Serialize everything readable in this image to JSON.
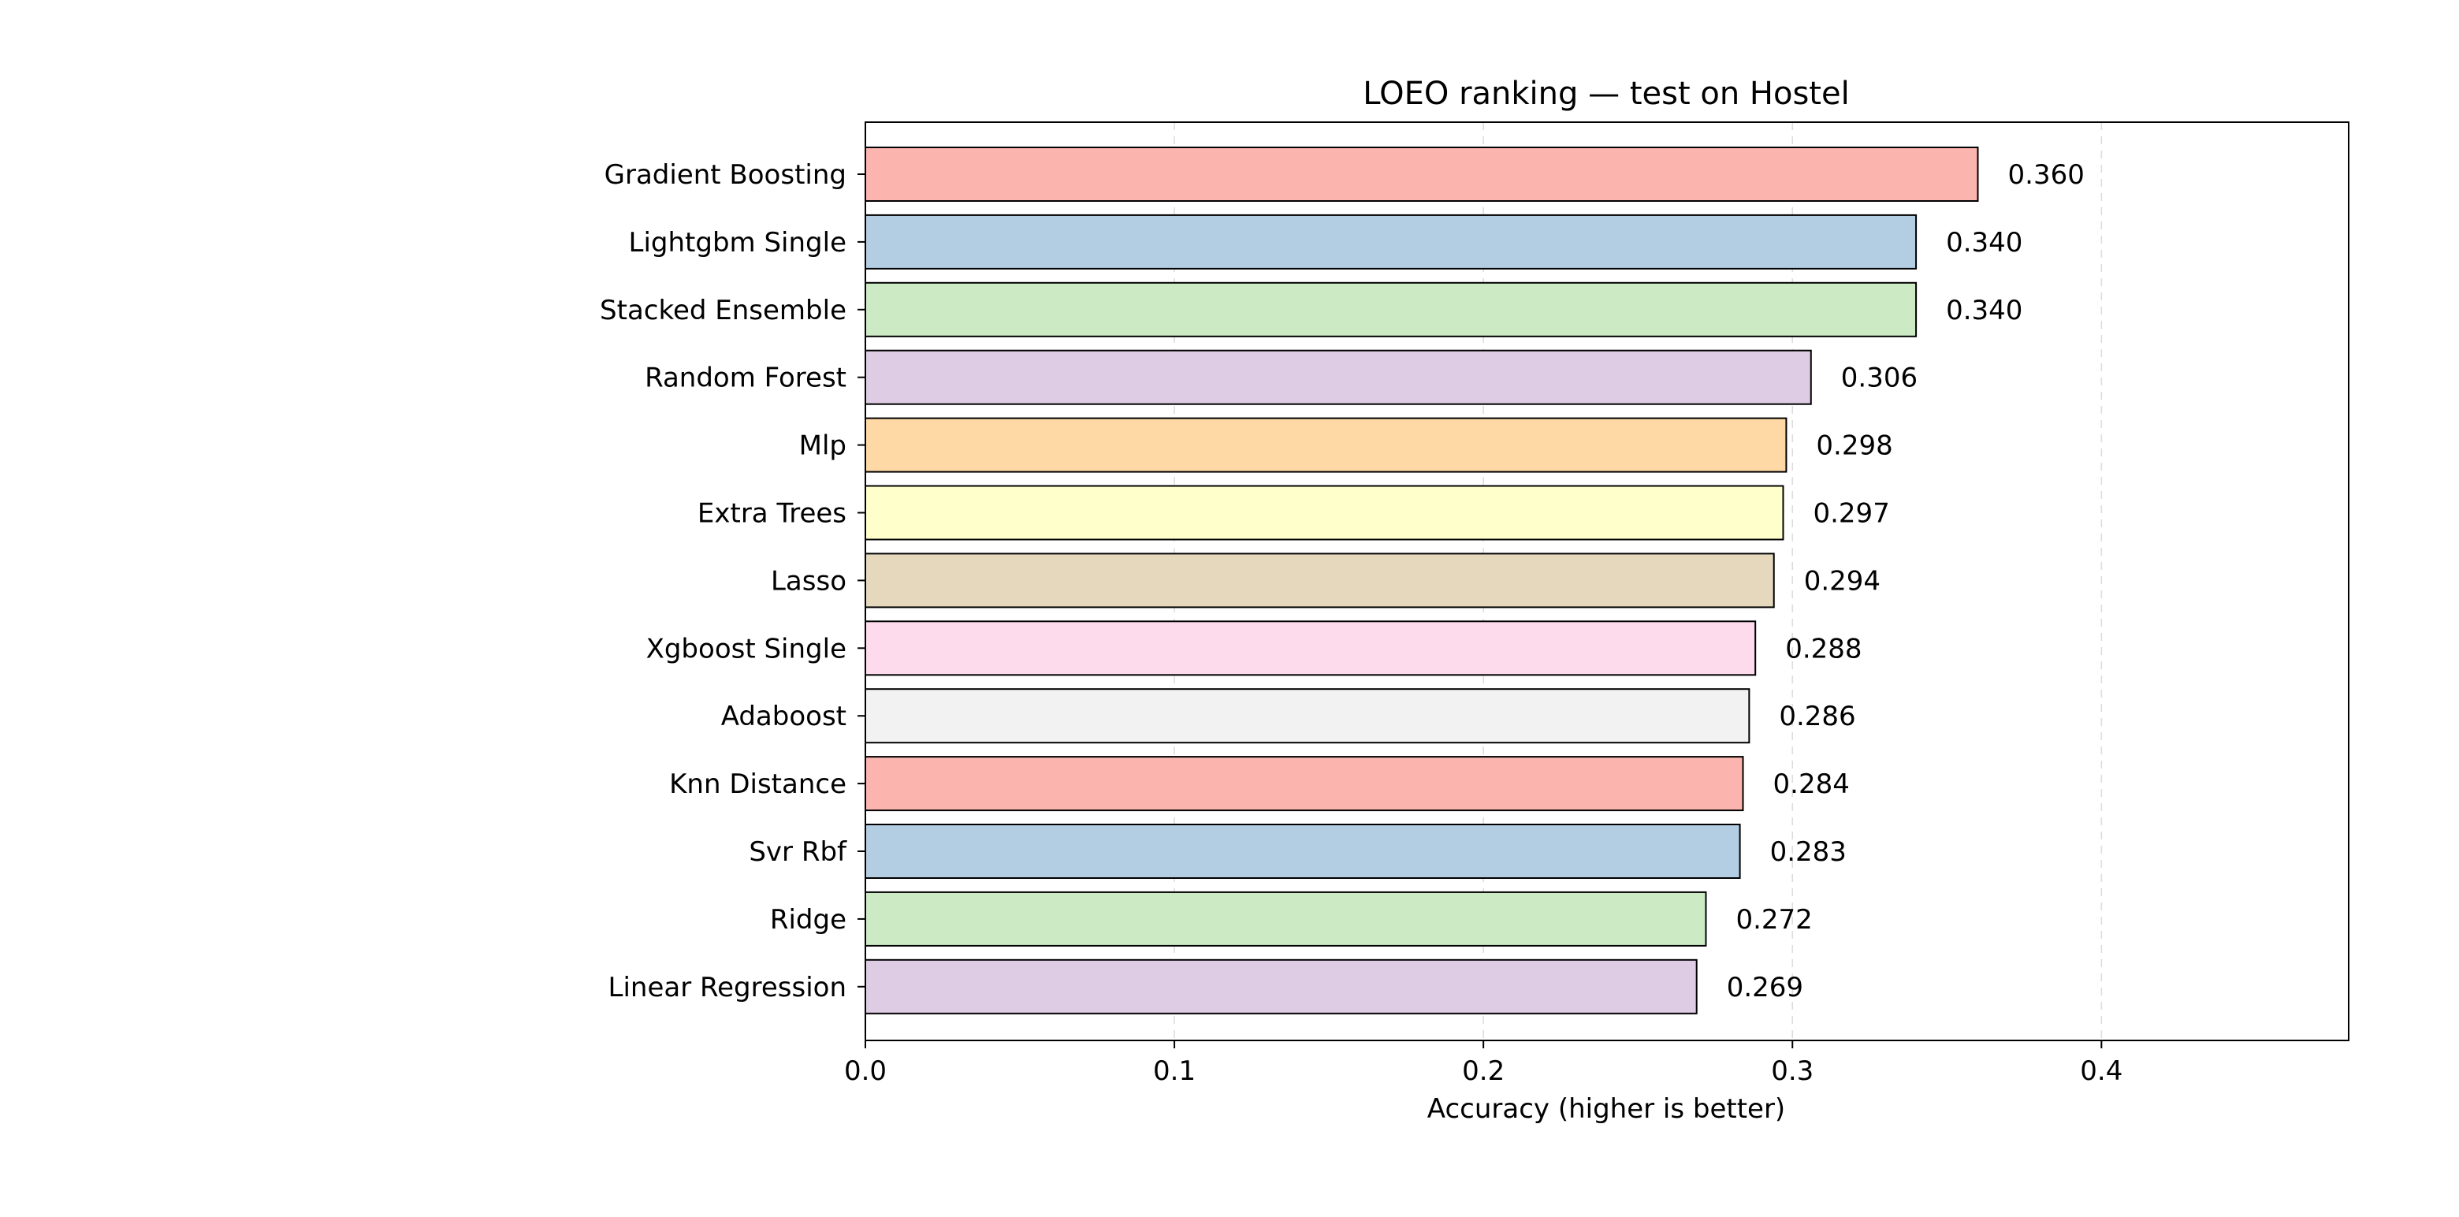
{
  "chart_data": {
    "type": "bar",
    "orientation": "horizontal",
    "title": "LOEO ranking — test on Hostel",
    "xlabel": "Accuracy (higher is better)",
    "ylabel": "",
    "xlim": [
      0,
      0.48
    ],
    "xticks": [
      0.0,
      0.1,
      0.2,
      0.3,
      0.4
    ],
    "xtick_labels": [
      "0.0",
      "0.1",
      "0.2",
      "0.3",
      "0.4"
    ],
    "grid": {
      "x": true,
      "y": false,
      "style": "dashed"
    },
    "categories": [
      "Gradient Boosting",
      "Lightgbm Single",
      "Stacked Ensemble",
      "Random Forest",
      "Mlp",
      "Extra Trees",
      "Lasso",
      "Xgboost Single",
      "Adaboost",
      "Knn Distance",
      "Svr Rbf",
      "Ridge",
      "Linear Regression"
    ],
    "values": [
      0.36,
      0.34,
      0.34,
      0.306,
      0.298,
      0.297,
      0.294,
      0.288,
      0.286,
      0.284,
      0.283,
      0.272,
      0.269
    ],
    "value_labels": [
      "0.360",
      "0.340",
      "0.340",
      "0.306",
      "0.298",
      "0.297",
      "0.294",
      "0.288",
      "0.286",
      "0.284",
      "0.283",
      "0.272",
      "0.269"
    ],
    "colors": [
      "#fbb4ae",
      "#b3cde3",
      "#ccebc5",
      "#decbe4",
      "#fed9a6",
      "#ffffcc",
      "#e5d8bd",
      "#fddaec",
      "#f2f2f2",
      "#fbb4ae",
      "#b3cde3",
      "#ccebc5",
      "#decbe4"
    ],
    "bar_edge_color": "#000000"
  }
}
